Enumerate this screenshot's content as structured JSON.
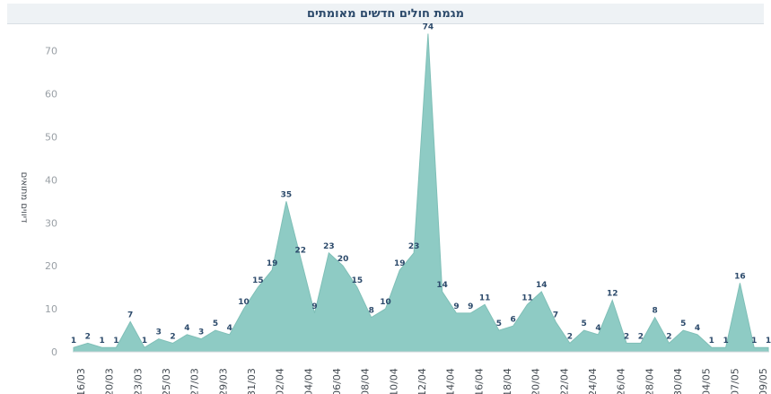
{
  "chart_data": {
    "type": "area",
    "title": "מגמת חולים חדשים מאומתים",
    "xlabel": "",
    "ylabel": "דיווים מתואים",
    "ylim": [
      0,
      76
    ],
    "yticks": [
      0,
      10,
      20,
      30,
      40,
      50,
      60,
      70
    ],
    "grid": false,
    "color": "#8ecbc4",
    "x_tick_labels": [
      "16/03",
      "20/03",
      "23/03",
      "25/03",
      "27/03",
      "29/03",
      "31/03",
      "02/04",
      "04/04",
      "06/04",
      "08/04",
      "10/04",
      "12/04",
      "14/04",
      "16/04",
      "18/04",
      "20/04",
      "22/04",
      "24/04",
      "26/04",
      "28/04",
      "30/04",
      "04/05",
      "07/05",
      "09/05"
    ],
    "values": [
      1,
      2,
      1,
      1,
      7,
      1,
      3,
      2,
      4,
      3,
      5,
      4,
      10,
      15,
      19,
      35,
      22,
      9,
      23,
      20,
      15,
      8,
      10,
      19,
      23,
      74,
      14,
      9,
      9,
      11,
      5,
      6,
      11,
      14,
      7,
      2,
      5,
      4,
      12,
      2,
      2,
      8,
      2,
      5,
      4,
      1,
      1,
      16,
      1,
      1
    ],
    "data_labels": [
      "1",
      "2",
      "1",
      "1",
      "7",
      "1",
      "3",
      "2",
      "4",
      "3",
      "5",
      "4",
      "10",
      "15",
      "19",
      "35",
      "22",
      "9",
      "23",
      "20",
      "15",
      "8",
      "10",
      "19",
      "23",
      "74",
      "14",
      "9",
      "9",
      "11",
      "5",
      "6",
      "11",
      "14",
      "7",
      "2",
      "5",
      "4",
      "12",
      "2",
      "2",
      "8",
      "2",
      "5",
      "4",
      "1",
      "1",
      "16",
      "1",
      "1"
    ]
  }
}
